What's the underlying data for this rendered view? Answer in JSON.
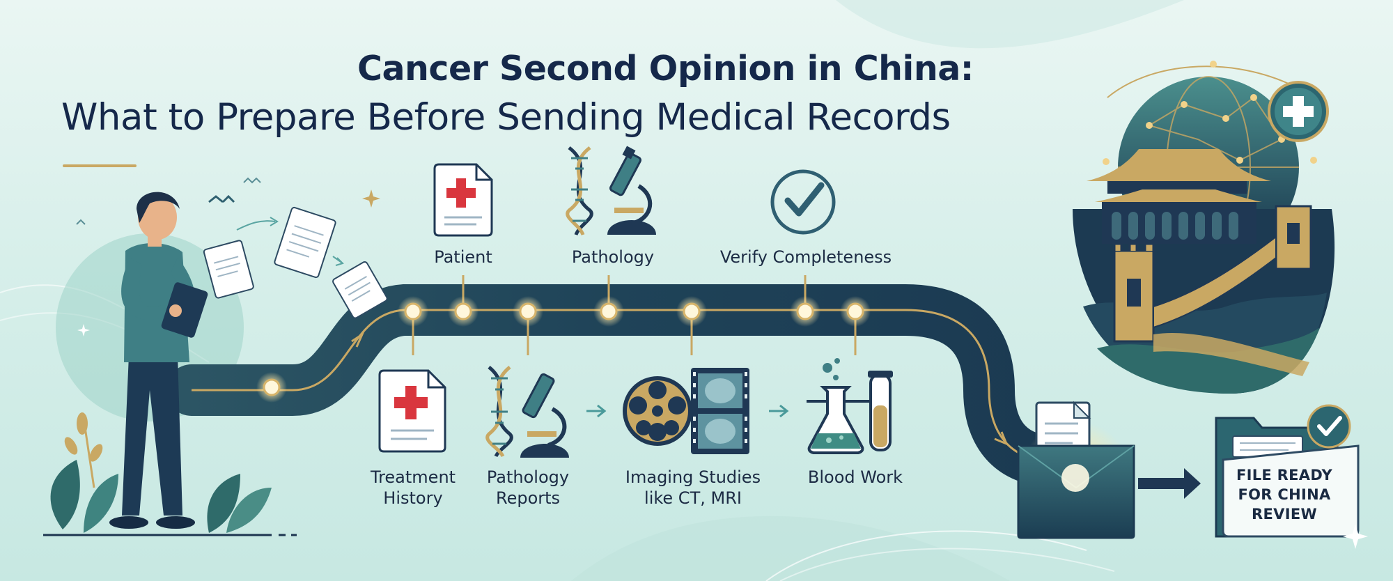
{
  "title": {
    "line1": "Cancer Second Opinion in China:",
    "line2": "What to Prepare Before Sending Medical Records"
  },
  "top_steps": [
    {
      "label": "Patient",
      "icon": "medical-document-icon"
    },
    {
      "label": "Pathology",
      "icon": "dna-microscope-icon"
    },
    {
      "label": "Verify Completeness",
      "icon": "checkmark-circle-icon"
    }
  ],
  "bottom_steps": [
    {
      "label": "Treatment History",
      "icon": "medical-document-icon"
    },
    {
      "label": "Pathology Reports",
      "icon": "dna-microscope-icon"
    },
    {
      "label": "Imaging Studies like CT, MRI",
      "icon": "film-reel-scan-icon"
    },
    {
      "label": "Blood Work",
      "icon": "lab-flask-tube-icon"
    }
  ],
  "final": {
    "label": "FILE READY FOR CHINA REVIEW",
    "icon": "folder-check-icon"
  },
  "colors": {
    "navy": "#15284a",
    "teal": "#2f6f76",
    "gold": "#c9a863",
    "red": "#d9363e",
    "background": "#d7efea"
  }
}
